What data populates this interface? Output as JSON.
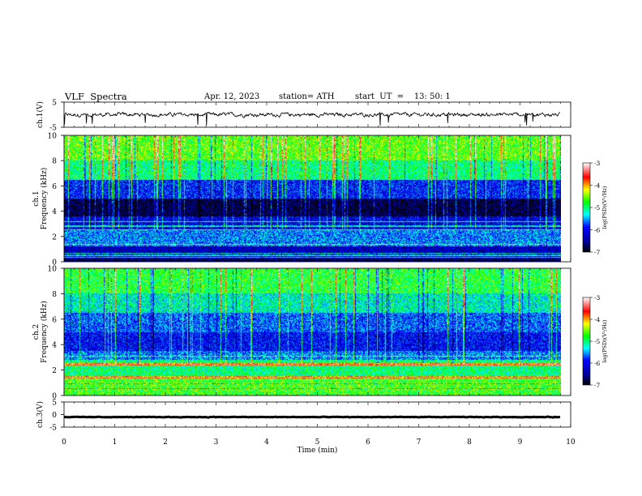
{
  "header": {
    "title": "VLF  Spectra",
    "date": "Apr. 12, 2023",
    "station": "station= ATH",
    "start": "start  UT  =    13: 50: 1"
  },
  "colors": {
    "colormap": [
      "#000000",
      "#0000ff",
      "#00ffff",
      "#00ff00",
      "#ffff00",
      "#ff0000",
      "#ffffff"
    ],
    "trace": "#000000",
    "frame": "#000000"
  },
  "chart_data": [
    {
      "type": "line",
      "panel": "ch1-waveform",
      "ylabel": "ch.1(V)",
      "ylim": [
        -5,
        5
      ],
      "yticks": [
        5,
        -5
      ],
      "xlim": [
        0,
        10
      ],
      "series": [
        {
          "description": "noisy waveform around ~0 V with spikes",
          "mean": 0.0,
          "spread": 1.0
        }
      ]
    },
    {
      "type": "heatmap",
      "panel": "ch1-spectrogram",
      "ylabel": "ch.1\nFrequency  (kHz)",
      "ylim": [
        0,
        10
      ],
      "yticks": [
        0,
        2,
        4,
        6,
        8,
        10
      ],
      "xlim": [
        0,
        10
      ],
      "x_data_end": 9.8,
      "colorbar": {
        "label": "log(PSD)(V²/Hz)",
        "range": [
          -7,
          -3
        ],
        "ticks": [
          -3,
          -4,
          -5,
          -6,
          -7
        ]
      },
      "bands": [
        {
          "fmin": 8.0,
          "fmax": 10.0,
          "level": -4.6
        },
        {
          "fmin": 6.5,
          "fmax": 8.0,
          "level": -5.0
        },
        {
          "fmin": 5.0,
          "fmax": 6.5,
          "level": -5.9
        },
        {
          "fmin": 3.6,
          "fmax": 5.0,
          "level": -6.8
        },
        {
          "fmin": 2.5,
          "fmax": 3.6,
          "level": -6.1
        },
        {
          "fmin": 1.2,
          "fmax": 2.5,
          "level": -5.6
        },
        {
          "fmin": 0.2,
          "fmax": 1.2,
          "level": -6.3
        },
        {
          "fmin": 0.0,
          "fmax": 0.2,
          "level": -7.0
        }
      ]
    },
    {
      "type": "heatmap",
      "panel": "ch2-spectrogram",
      "ylabel": "ch.2\nFrequency  (kHz)",
      "ylim": [
        0,
        10
      ],
      "yticks": [
        0,
        2,
        4,
        6,
        8,
        10
      ],
      "xlim": [
        0,
        10
      ],
      "x_data_end": 9.8,
      "colorbar": {
        "label": "log(PSD)(V²/Hz)",
        "range": [
          -7,
          -3
        ],
        "ticks": [
          -3,
          -4,
          -5,
          -6,
          -7
        ]
      },
      "bands": [
        {
          "fmin": 8.0,
          "fmax": 10.0,
          "level": -4.8
        },
        {
          "fmin": 6.5,
          "fmax": 8.0,
          "level": -5.2
        },
        {
          "fmin": 5.0,
          "fmax": 6.5,
          "level": -5.7
        },
        {
          "fmin": 3.5,
          "fmax": 5.0,
          "level": -6.0
        },
        {
          "fmin": 2.8,
          "fmax": 3.5,
          "level": -5.6
        },
        {
          "fmin": 1.5,
          "fmax": 2.8,
          "level": -5.0
        },
        {
          "fmin": 0.0,
          "fmax": 1.5,
          "level": -4.7
        }
      ]
    },
    {
      "type": "line",
      "panel": "ch3-waveform",
      "ylabel": "ch.3(V)",
      "ylim": [
        -5,
        5
      ],
      "yticks": [
        5,
        0,
        -5
      ],
      "xlim": [
        0,
        10
      ],
      "series": [
        {
          "description": "flat trace near -1 V",
          "mean": -1.0,
          "spread": 0.15
        }
      ]
    }
  ],
  "xaxis": {
    "label": "Time  (min)",
    "ticks": [
      0,
      1,
      2,
      3,
      4,
      5,
      6,
      7,
      8,
      9,
      10
    ],
    "range": [
      0,
      10
    ]
  }
}
